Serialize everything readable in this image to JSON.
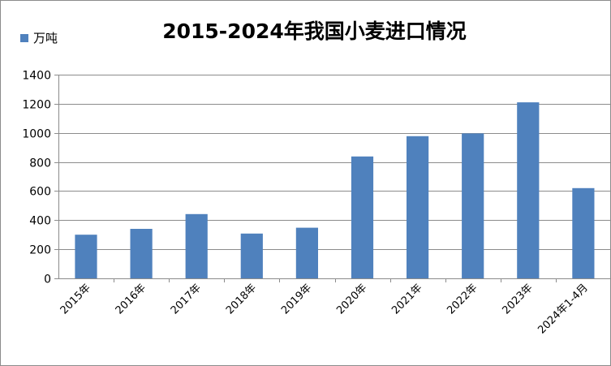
{
  "chart_data": {
    "type": "bar",
    "title": "2015-2024年我国小麦进口情况",
    "categories": [
      "2015年",
      "2016年",
      "2017年",
      "2018年",
      "2019年",
      "2020年",
      "2021年",
      "2022年",
      "2023年",
      "2024年1-4月"
    ],
    "series": [
      {
        "name": "万吨",
        "values": [
          300,
          340,
          442,
          308,
          348,
          838,
          977,
          996,
          1210,
          620
        ]
      }
    ],
    "ylim": [
      0,
      1400
    ],
    "yticks": [
      0,
      200,
      400,
      600,
      800,
      1000,
      1200,
      1400
    ],
    "grid": true,
    "legend": "top-left",
    "colors": {
      "bar": "#4f81bd",
      "grid": "#8c8c8c",
      "axis": "#8c8c8c"
    }
  }
}
